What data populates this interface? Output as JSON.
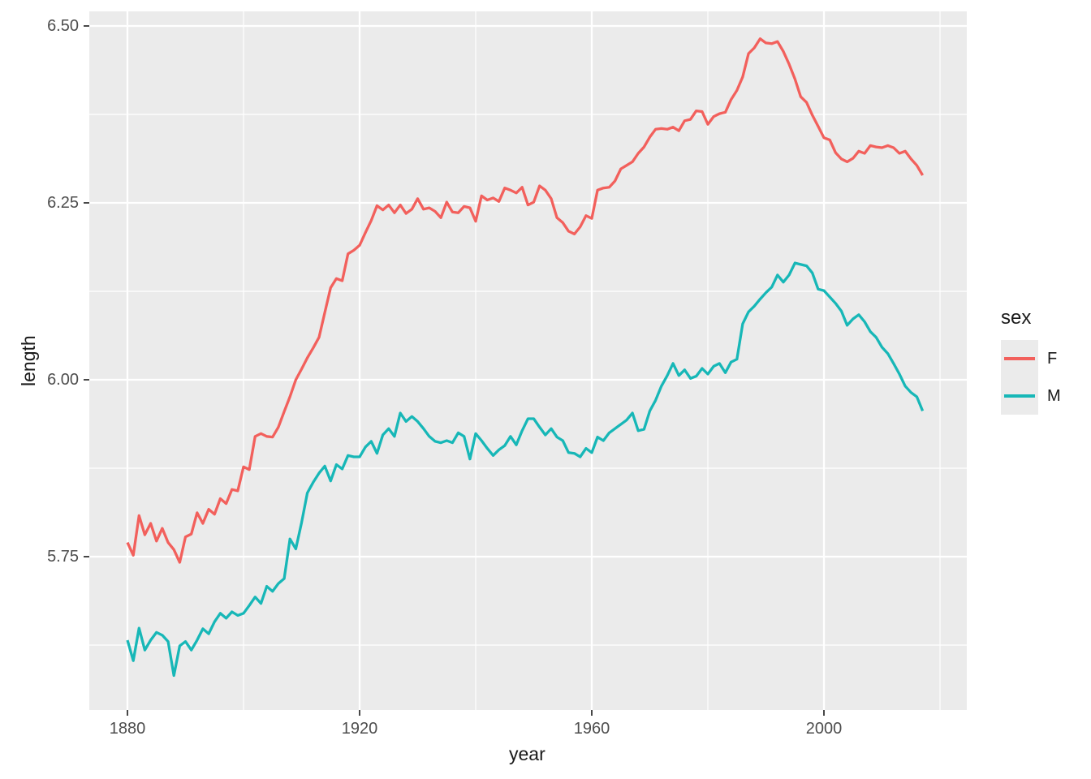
{
  "panel": {
    "background": "#ebebeb",
    "grid_color": "#ffffff",
    "tick_mark_color": "#333333",
    "tick_label_color": "#4d4d4d",
    "title_color": "#1a1a1a"
  },
  "axes": {
    "x": {
      "title": "year",
      "tick_labels": [
        "1880",
        "1920",
        "1960",
        "2000"
      ],
      "tick_values": [
        1880,
        1920,
        1960,
        2000
      ],
      "minor_values": [
        1900,
        1940,
        1980,
        2020
      ]
    },
    "y": {
      "title": "length",
      "tick_labels": [
        "5.75",
        "6.00",
        "6.25",
        "6.50"
      ],
      "tick_values": [
        5.75,
        6.0,
        6.25,
        6.5
      ],
      "minor_values": [
        5.625,
        5.875,
        6.125,
        6.375
      ]
    }
  },
  "legend": {
    "title": "sex",
    "entries": [
      {
        "label": "F",
        "color": "#f2605c"
      },
      {
        "label": "M",
        "color": "#17b7b7"
      }
    ]
  },
  "chart_data": {
    "type": "line",
    "title": "",
    "xlabel": "year",
    "ylabel": "length",
    "x_start": 1880,
    "x_step": 1,
    "x_end": 2017,
    "xlim": [
      1873.4,
      2024.7
    ],
    "ylim": [
      5.565,
      6.515
    ],
    "grid": "on",
    "legend_position": "right",
    "series": [
      {
        "name": "F",
        "color": "#f2605c",
        "values": [
          5.77,
          5.752,
          5.808,
          5.781,
          5.797,
          5.772,
          5.79,
          5.77,
          5.76,
          5.742,
          5.778,
          5.782,
          5.812,
          5.797,
          5.817,
          5.81,
          5.832,
          5.825,
          5.845,
          5.843,
          5.877,
          5.873,
          5.92,
          5.924,
          5.92,
          5.919,
          5.933,
          5.955,
          5.976,
          6.0,
          6.015,
          6.031,
          6.045,
          6.06,
          6.095,
          6.13,
          6.143,
          6.14,
          6.178,
          6.183,
          6.19,
          6.208,
          6.225,
          6.246,
          6.24,
          6.247,
          6.236,
          6.247,
          6.235,
          6.241,
          6.256,
          6.241,
          6.243,
          6.238,
          6.229,
          6.251,
          6.237,
          6.236,
          6.245,
          6.243,
          6.224,
          6.26,
          6.254,
          6.257,
          6.252,
          6.271,
          6.268,
          6.264,
          6.272,
          6.247,
          6.251,
          6.274,
          6.268,
          6.256,
          6.229,
          6.222,
          6.21,
          6.206,
          6.216,
          6.232,
          6.228,
          6.268,
          6.271,
          6.272,
          6.281,
          6.298,
          6.303,
          6.308,
          6.32,
          6.329,
          6.343,
          6.354,
          6.355,
          6.354,
          6.357,
          6.352,
          6.366,
          6.368,
          6.38,
          6.379,
          6.361,
          6.372,
          6.376,
          6.378,
          6.396,
          6.409,
          6.428,
          6.461,
          6.469,
          6.482,
          6.476,
          6.475,
          6.478,
          6.464,
          6.446,
          6.425,
          6.4,
          6.392,
          6.374,
          6.358,
          6.342,
          6.339,
          6.321,
          6.312,
          6.308,
          6.313,
          6.323,
          6.32,
          6.331,
          6.329,
          6.328,
          6.331,
          6.328,
          6.32,
          6.323,
          6.312,
          6.303,
          6.289
        ]
      },
      {
        "name": "M",
        "color": "#17b7b7",
        "values": [
          5.632,
          5.603,
          5.649,
          5.618,
          5.632,
          5.643,
          5.639,
          5.63,
          5.582,
          5.624,
          5.63,
          5.618,
          5.632,
          5.648,
          5.641,
          5.658,
          5.67,
          5.663,
          5.672,
          5.667,
          5.67,
          5.681,
          5.693,
          5.684,
          5.708,
          5.701,
          5.712,
          5.719,
          5.775,
          5.761,
          5.798,
          5.84,
          5.855,
          5.868,
          5.878,
          5.857,
          5.88,
          5.874,
          5.893,
          5.891,
          5.891,
          5.905,
          5.913,
          5.896,
          5.922,
          5.931,
          5.92,
          5.953,
          5.941,
          5.948,
          5.941,
          5.931,
          5.92,
          5.913,
          5.911,
          5.914,
          5.911,
          5.925,
          5.92,
          5.888,
          5.924,
          5.914,
          5.903,
          5.893,
          5.901,
          5.907,
          5.92,
          5.908,
          5.928,
          5.945,
          5.945,
          5.933,
          5.922,
          5.931,
          5.919,
          5.914,
          5.897,
          5.896,
          5.891,
          5.903,
          5.897,
          5.919,
          5.914,
          5.925,
          5.931,
          5.937,
          5.943,
          5.953,
          5.928,
          5.93,
          5.956,
          5.971,
          5.991,
          6.006,
          6.023,
          6.006,
          6.014,
          6.002,
          6.005,
          6.016,
          6.008,
          6.019,
          6.023,
          6.01,
          6.025,
          6.029,
          6.079,
          6.096,
          6.104,
          6.114,
          6.123,
          6.131,
          6.148,
          6.138,
          6.148,
          6.165,
          6.163,
          6.161,
          6.151,
          6.128,
          6.126,
          6.117,
          6.108,
          6.097,
          6.077,
          6.086,
          6.092,
          6.082,
          6.068,
          6.06,
          6.046,
          6.037,
          6.023,
          6.008,
          5.991,
          5.982,
          5.976,
          5.956
        ]
      }
    ]
  }
}
